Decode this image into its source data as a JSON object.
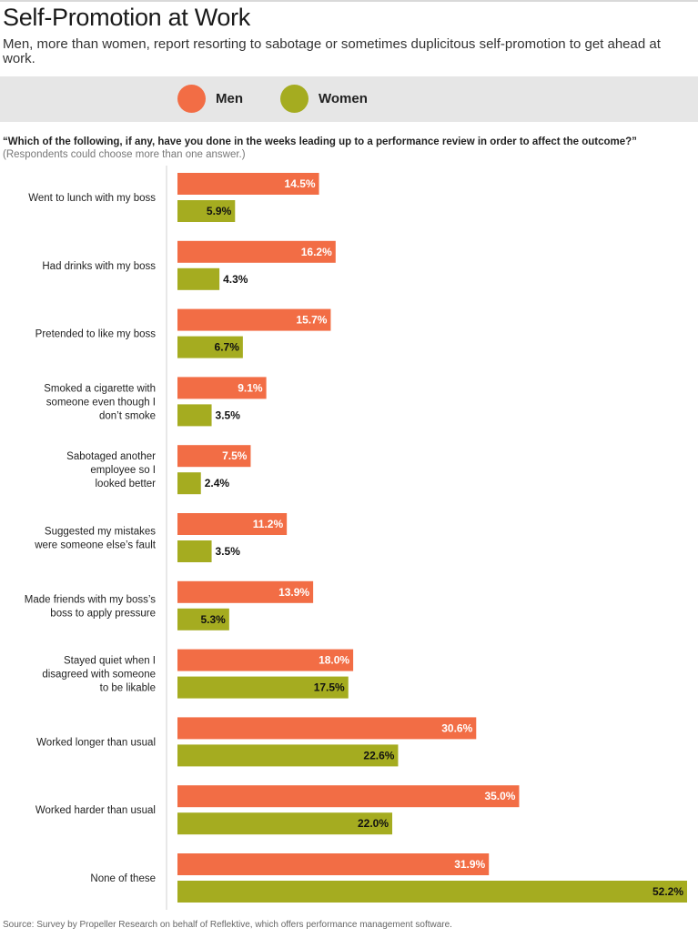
{
  "header": {
    "title": "Self-Promotion at Work",
    "subtitle": "Men, more than women, report resorting to sabotage or sometimes duplicitous self-promotion to get ahead at work."
  },
  "question": "“Which of the following, if any, have you done in the weeks leading up to a performance review in order to affect the outcome?”",
  "note": "(Respondents could choose more than one answer.)",
  "source": "Source: Survey by Propeller Research on behalf of Reflektive, which offers performance management software.",
  "colors": {
    "men": "#f26d45",
    "women": "#a5ac20",
    "legend_bg": "#e6e6e6"
  },
  "chart_data": {
    "type": "bar",
    "orientation": "horizontal",
    "title": "Self-Promotion at Work",
    "xlabel": "",
    "ylabel": "",
    "unit": "%",
    "xlim": [
      0,
      52.2
    ],
    "legend": "top",
    "categories": [
      "Went to lunch with my boss",
      "Had drinks with my boss",
      "Pretended to like my boss",
      "Smoked a cigarette with someone even though I don’t smoke",
      "Sabotaged another employee so I looked better",
      "Suggested my mistakes were someone else’s fault",
      "Made friends with my boss’s boss to apply pressure",
      "Stayed quiet when I disagreed with someone to be likable",
      "Worked longer than usual",
      "Worked harder than usual",
      "None of these"
    ],
    "category_lines": [
      [
        "Went to lunch with my boss"
      ],
      [
        "Had drinks with my boss"
      ],
      [
        "Pretended to like my boss"
      ],
      [
        "Smoked a cigarette with",
        "someone even though I",
        "don’t smoke"
      ],
      [
        "Sabotaged another",
        "employee so I",
        "looked better"
      ],
      [
        "Suggested my mistakes",
        "were someone else’s fault"
      ],
      [
        "Made friends with my boss’s",
        "boss to apply pressure"
      ],
      [
        "Stayed quiet when I",
        "disagreed with someone",
        "to be likable"
      ],
      [
        "Worked longer than usual"
      ],
      [
        "Worked harder than usual"
      ],
      [
        "None of these"
      ]
    ],
    "series": [
      {
        "name": "Men",
        "values": [
          14.5,
          16.2,
          15.7,
          9.1,
          7.5,
          11.2,
          13.9,
          18.0,
          30.6,
          35.0,
          31.9
        ],
        "labels": [
          "14.5%",
          "16.2%",
          "15.7%",
          "9.1%",
          "7.5%",
          "11.2%",
          "13.9%",
          "18.0%",
          "30.6%",
          "35.0%",
          "31.9%"
        ]
      },
      {
        "name": "Women",
        "values": [
          5.9,
          4.3,
          6.7,
          3.5,
          2.4,
          3.5,
          5.3,
          17.5,
          22.6,
          22.0,
          52.2
        ],
        "labels": [
          "5.9%",
          "4.3%",
          "6.7%",
          "3.5%",
          "2.4%",
          "3.5%",
          "5.3%",
          "17.5%",
          "22.6%",
          "22.0%",
          "52.2%"
        ]
      }
    ]
  }
}
